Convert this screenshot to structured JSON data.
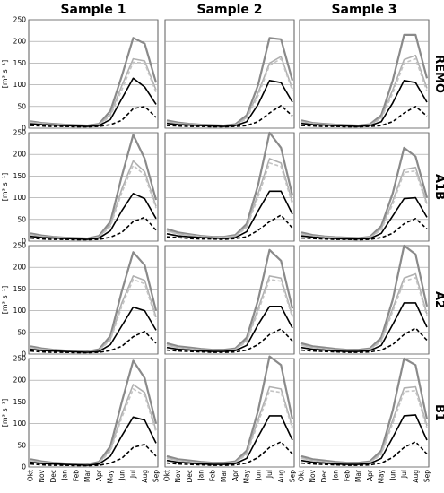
{
  "columns": [
    "Sample 1",
    "Sample 2",
    "Sample 3"
  ],
  "rows": [
    "REMO",
    "A1B",
    "A2",
    "B1"
  ],
  "ylabel": "[m³ s⁻¹]",
  "yticks": [
    "0",
    "50",
    "100",
    "150",
    "200",
    "250"
  ],
  "months": [
    "Okt",
    "Nov",
    "Dec",
    "Jan",
    "Feb",
    "Mar",
    "Apr",
    "May",
    "Jun",
    "Jul",
    "Aug",
    "Sep"
  ],
  "chart_data": {
    "type": "line",
    "layout": "grid of 4 rows (scenario) x 3 columns (sample)",
    "x": [
      "Okt",
      "Nov",
      "Dec",
      "Jan",
      "Feb",
      "Mar",
      "Apr",
      "May",
      "Jun",
      "Jul",
      "Aug",
      "Sep"
    ],
    "ylim": [
      0,
      250
    ],
    "grid": true,
    "ylabel": "[m³ s⁻¹]",
    "series_styles": [
      {
        "color": "#8a8a8a",
        "dash": "solid",
        "width": 2.2
      },
      {
        "color": "#b0b0b0",
        "dash": "solid",
        "width": 1.6
      },
      {
        "color": "#c4c4c4",
        "dash": "dashed",
        "width": 1.6
      },
      {
        "color": "#000000",
        "dash": "solid",
        "width": 1.6
      },
      {
        "color": "#000000",
        "dash": "dashed",
        "width": 1.6
      }
    ],
    "panels": [
      {
        "row": "REMO",
        "col": "Sample 1",
        "series": [
          {
            "values": [
              16,
              12,
              10,
              8,
              7,
              6,
              10,
              40,
              120,
              208,
              195,
              105
            ]
          },
          {
            "values": [
              14,
              11,
              9,
              7,
              6,
              5,
              8,
              32,
              98,
              160,
              155,
              88
            ]
          },
          {
            "values": [
              13,
              10,
              8,
              7,
              6,
              5,
              7,
              28,
              88,
              152,
              150,
              82
            ]
          },
          {
            "values": [
              10,
              8,
              7,
              6,
              5,
              4,
              6,
              20,
              68,
              115,
              95,
              55
            ]
          },
          {
            "values": [
              6,
              5,
              4,
              4,
              3,
              3,
              4,
              8,
              18,
              45,
              50,
              25
            ]
          }
        ]
      },
      {
        "row": "REMO",
        "col": "Sample 2",
        "series": [
          {
            "values": [
              18,
              13,
              10,
              8,
              7,
              6,
              9,
              30,
              100,
              208,
              205,
              110
            ]
          },
          {
            "values": [
              15,
              11,
              9,
              7,
              6,
              5,
              7,
              25,
              82,
              150,
              165,
              90
            ]
          },
          {
            "values": [
              14,
              10,
              8,
              7,
              6,
              5,
              7,
              22,
              75,
              145,
              160,
              86
            ]
          },
          {
            "values": [
              11,
              8,
              7,
              6,
              5,
              4,
              6,
              15,
              55,
              110,
              105,
              60
            ]
          },
          {
            "values": [
              6,
              5,
              4,
              4,
              3,
              3,
              4,
              6,
              15,
              35,
              52,
              28
            ]
          }
        ]
      },
      {
        "row": "REMO",
        "col": "Sample 3",
        "series": [
          {
            "values": [
              18,
              12,
              10,
              8,
              7,
              6,
              9,
              30,
              110,
              215,
              215,
              115
            ]
          },
          {
            "values": [
              15,
              11,
              9,
              7,
              6,
              5,
              7,
              25,
              88,
              158,
              168,
              92
            ]
          },
          {
            "values": [
              14,
              10,
              8,
              7,
              6,
              5,
              7,
              22,
              80,
              150,
              160,
              85
            ]
          },
          {
            "values": [
              11,
              8,
              7,
              6,
              5,
              4,
              6,
              15,
              58,
              110,
              105,
              60
            ]
          },
          {
            "values": [
              6,
              5,
              4,
              4,
              3,
              3,
              4,
              6,
              15,
              35,
              50,
              28
            ]
          }
        ]
      },
      {
        "row": "A1B",
        "col": "Sample 1",
        "series": [
          {
            "values": [
              18,
              13,
              10,
              8,
              7,
              6,
              12,
              45,
              150,
              245,
              190,
              95
            ]
          },
          {
            "values": [
              15,
              11,
              9,
              7,
              6,
              5,
              10,
              38,
              120,
              185,
              160,
              80
            ]
          },
          {
            "values": [
              14,
              10,
              8,
              7,
              6,
              5,
              9,
              34,
              112,
              175,
              152,
              76
            ]
          },
          {
            "values": [
              11,
              8,
              7,
              6,
              5,
              4,
              7,
              24,
              70,
              110,
              98,
              52
            ]
          },
          {
            "values": [
              7,
              5,
              4,
              4,
              3,
              3,
              4,
              9,
              20,
              45,
              55,
              25
            ]
          }
        ]
      },
      {
        "row": "A1B",
        "col": "Sample 2",
        "series": [
          {
            "values": [
              28,
              20,
              16,
              12,
              10,
              10,
              14,
              40,
              130,
              250,
              215,
              105
            ]
          },
          {
            "values": [
              24,
              17,
              14,
              11,
              9,
              9,
              12,
              34,
              110,
              190,
              180,
              90
            ]
          },
          {
            "values": [
              23,
              16,
              13,
              10,
              9,
              8,
              11,
              31,
              102,
              180,
              172,
              85
            ]
          },
          {
            "values": [
              17,
              12,
              10,
              8,
              7,
              6,
              8,
              22,
              70,
              115,
              115,
              62
            ]
          },
          {
            "values": [
              10,
              8,
              6,
              5,
              5,
              4,
              6,
              10,
              25,
              45,
              60,
              30
            ]
          }
        ]
      },
      {
        "row": "A1B",
        "col": "Sample 3",
        "series": [
          {
            "values": [
              20,
              14,
              11,
              9,
              8,
              7,
              10,
              35,
              110,
              215,
              195,
              100
            ]
          },
          {
            "values": [
              17,
              12,
              10,
              8,
              7,
              6,
              8,
              29,
              92,
              165,
              170,
              86
            ]
          },
          {
            "values": [
              16,
              11,
              9,
              7,
              6,
              6,
              8,
              26,
              85,
              158,
              162,
              82
            ]
          },
          {
            "values": [
              12,
              9,
              7,
              6,
              5,
              5,
              6,
              18,
              58,
              98,
              100,
              55
            ]
          },
          {
            "values": [
              7,
              6,
              5,
              4,
              4,
              3,
              4,
              8,
              18,
              40,
              52,
              28
            ]
          }
        ]
      },
      {
        "row": "A2",
        "col": "Sample 1",
        "series": [
          {
            "values": [
              18,
              13,
              10,
              8,
              7,
              6,
              11,
              42,
              145,
              235,
              205,
              100
            ]
          },
          {
            "values": [
              15,
              11,
              9,
              7,
              6,
              5,
              9,
              35,
              118,
              180,
              170,
              85
            ]
          },
          {
            "values": [
              14,
              10,
              8,
              7,
              6,
              5,
              8,
              32,
              110,
              172,
              162,
              80
            ]
          },
          {
            "values": [
              11,
              8,
              7,
              6,
              5,
              4,
              6,
              22,
              65,
              108,
              100,
              55
            ]
          },
          {
            "values": [
              7,
              5,
              4,
              4,
              3,
              3,
              4,
              8,
              18,
              40,
              52,
              25
            ]
          }
        ]
      },
      {
        "row": "A2",
        "col": "Sample 2",
        "series": [
          {
            "values": [
              25,
              18,
              15,
              12,
              10,
              10,
              13,
              38,
              125,
              240,
              215,
              105
            ]
          },
          {
            "values": [
              21,
              15,
              12,
              10,
              9,
              8,
              11,
              32,
              105,
              180,
              175,
              88
            ]
          },
          {
            "values": [
              20,
              14,
              12,
              9,
              8,
              8,
              10,
              29,
              98,
              172,
              168,
              84
            ]
          },
          {
            "values": [
              15,
              11,
              9,
              7,
              6,
              6,
              8,
              20,
              68,
              110,
              110,
              60
            ]
          },
          {
            "values": [
              9,
              7,
              6,
              5,
              4,
              4,
              5,
              9,
              22,
              45,
              58,
              30
            ]
          }
        ]
      },
      {
        "row": "A2",
        "col": "Sample 3",
        "series": [
          {
            "values": [
              25,
              18,
              15,
              12,
              10,
              10,
              13,
              38,
              125,
              250,
              230,
              110
            ]
          },
          {
            "values": [
              21,
              15,
              12,
              10,
              9,
              8,
              11,
              32,
              105,
              175,
              185,
              92
            ]
          },
          {
            "values": [
              20,
              14,
              12,
              9,
              8,
              8,
              10,
              29,
              98,
              168,
              176,
              88
            ]
          },
          {
            "values": [
              15,
              11,
              9,
              7,
              6,
              6,
              8,
              20,
              68,
              118,
              118,
              62
            ]
          },
          {
            "values": [
              9,
              7,
              6,
              5,
              4,
              4,
              5,
              9,
              22,
              45,
              60,
              32
            ]
          }
        ]
      },
      {
        "row": "B1",
        "col": "Sample 1",
        "series": [
          {
            "values": [
              18,
              13,
              10,
              8,
              7,
              6,
              12,
              48,
              150,
              245,
              205,
              100
            ]
          },
          {
            "values": [
              15,
              11,
              9,
              7,
              6,
              5,
              10,
              40,
              122,
              190,
              172,
              85
            ]
          },
          {
            "values": [
              14,
              10,
              8,
              7,
              6,
              5,
              9,
              36,
              114,
              180,
              165,
              80
            ]
          },
          {
            "values": [
              11,
              8,
              7,
              6,
              5,
              4,
              7,
              25,
              72,
              115,
              108,
              55
            ]
          },
          {
            "values": [
              7,
              5,
              4,
              4,
              3,
              3,
              4,
              9,
              20,
              45,
              52,
              25
            ]
          }
        ]
      },
      {
        "row": "B1",
        "col": "Sample 2",
        "series": [
          {
            "values": [
              25,
              18,
              15,
              12,
              10,
              10,
              13,
              38,
              130,
              255,
              235,
              110
            ]
          },
          {
            "values": [
              21,
              15,
              12,
              10,
              9,
              8,
              11,
              32,
              110,
              185,
              180,
              92
            ]
          },
          {
            "values": [
              20,
              14,
              12,
              9,
              8,
              8,
              10,
              29,
              102,
              176,
              172,
              88
            ]
          },
          {
            "values": [
              15,
              11,
              9,
              7,
              6,
              6,
              8,
              20,
              70,
              118,
              118,
              62
            ]
          },
          {
            "values": [
              9,
              7,
              6,
              5,
              4,
              4,
              5,
              9,
              22,
              45,
              58,
              30
            ]
          }
        ]
      },
      {
        "row": "B1",
        "col": "Sample 3",
        "series": [
          {
            "values": [
              25,
              18,
              15,
              12,
              10,
              10,
              13,
              38,
              130,
              250,
              235,
              110
            ]
          },
          {
            "values": [
              21,
              15,
              12,
              10,
              9,
              8,
              11,
              32,
              108,
              182,
              185,
              95
            ]
          },
          {
            "values": [
              20,
              14,
              12,
              9,
              8,
              8,
              10,
              29,
              100,
              174,
              176,
              90
            ]
          },
          {
            "values": [
              15,
              11,
              9,
              7,
              6,
              6,
              8,
              20,
              68,
              118,
              120,
              62
            ]
          },
          {
            "values": [
              9,
              7,
              6,
              5,
              4,
              4,
              5,
              9,
              22,
              45,
              58,
              30
            ]
          }
        ]
      }
    ]
  }
}
